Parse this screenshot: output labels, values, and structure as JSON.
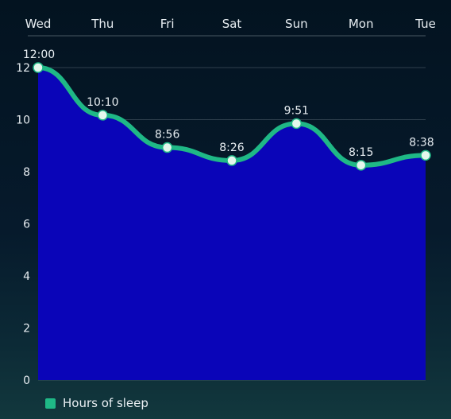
{
  "chart_data": {
    "type": "area",
    "categories": [
      "Wed",
      "Thu",
      "Fri",
      "Sat",
      "Sun",
      "Mon",
      "Tue"
    ],
    "series": [
      {
        "name": "Hours of sleep",
        "values": [
          12.0,
          10.17,
          8.93,
          8.43,
          9.85,
          8.25,
          8.63
        ],
        "labels": [
          "12:00",
          "10:10",
          "8:56",
          "8:26",
          "9:51",
          "8:15",
          "8:38"
        ]
      }
    ],
    "yticks": [
      0,
      2,
      4,
      6,
      8,
      10,
      12
    ],
    "ylim": [
      0,
      12
    ],
    "x_axis_position": "top",
    "grid": true,
    "legend_position": "bottom-left"
  },
  "colors": {
    "area_fill": "#0a05b8",
    "line": "#1fb886",
    "marker_fill": "#e3f7ec",
    "text": "#e8eef2",
    "gridline": "#c9d3da",
    "legend_swatch": "#1fb886"
  }
}
